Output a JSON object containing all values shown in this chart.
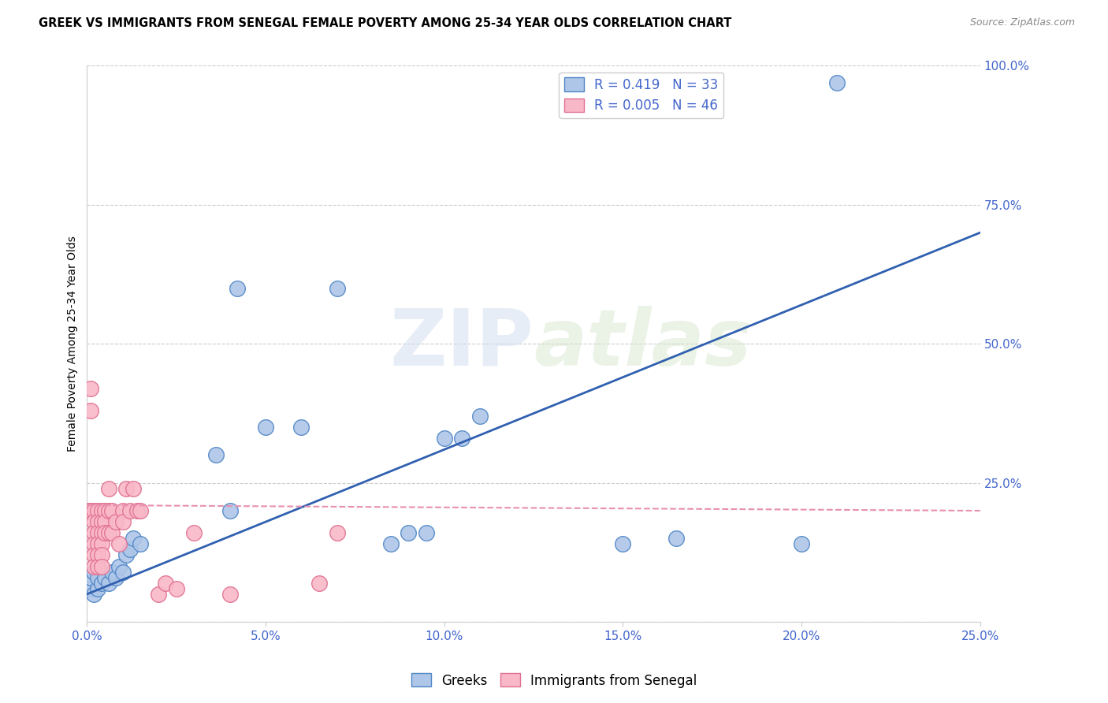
{
  "title": "GREEK VS IMMIGRANTS FROM SENEGAL FEMALE POVERTY AMONG 25-34 YEAR OLDS CORRELATION CHART",
  "source": "Source: ZipAtlas.com",
  "ylabel": "Female Poverty Among 25-34 Year Olds",
  "xlim": [
    0.0,
    0.25
  ],
  "ylim": [
    0.0,
    1.0
  ],
  "xticks": [
    0.0,
    0.05,
    0.1,
    0.15,
    0.2,
    0.25
  ],
  "yticks": [
    0.0,
    0.25,
    0.5,
    0.75,
    1.0
  ],
  "xtick_labels": [
    "0.0%",
    "5.0%",
    "10.0%",
    "15.0%",
    "20.0%",
    "25.0%"
  ],
  "ytick_labels": [
    "",
    "25.0%",
    "50.0%",
    "75.0%",
    "100.0%"
  ],
  "greek_R": 0.419,
  "greek_N": 33,
  "senegal_R": 0.005,
  "senegal_N": 46,
  "blue_color": "#aec6e8",
  "blue_edge_color": "#4f86c6",
  "pink_color": "#f9b8c8",
  "pink_edge_color": "#e07090",
  "blue_line_color": "#3060b0",
  "pink_line_color": "#e890b0",
  "legend_labels": [
    "Greeks",
    "Immigrants from Senegal"
  ],
  "watermark": "ZIPatlas",
  "greek_x": [
    0.001,
    0.001,
    0.002,
    0.002,
    0.003,
    0.003,
    0.004,
    0.005,
    0.006,
    0.007,
    0.008,
    0.009,
    0.01,
    0.011,
    0.012,
    0.013,
    0.015,
    0.036,
    0.04,
    0.042,
    0.05,
    0.06,
    0.07,
    0.085,
    0.09,
    0.095,
    0.1,
    0.105,
    0.11,
    0.15,
    0.165,
    0.2,
    0.21
  ],
  "greek_y": [
    0.06,
    0.08,
    0.05,
    0.09,
    0.06,
    0.08,
    0.07,
    0.08,
    0.07,
    0.09,
    0.08,
    0.1,
    0.09,
    0.12,
    0.13,
    0.15,
    0.14,
    0.3,
    0.2,
    0.6,
    0.35,
    0.35,
    0.6,
    0.14,
    0.16,
    0.16,
    0.33,
    0.33,
    0.37,
    0.14,
    0.15,
    0.14,
    0.97
  ],
  "senegal_x": [
    0.0005,
    0.001,
    0.001,
    0.001,
    0.002,
    0.002,
    0.002,
    0.002,
    0.002,
    0.002,
    0.003,
    0.003,
    0.003,
    0.003,
    0.003,
    0.003,
    0.004,
    0.004,
    0.004,
    0.004,
    0.004,
    0.004,
    0.005,
    0.005,
    0.005,
    0.006,
    0.006,
    0.006,
    0.007,
    0.007,
    0.008,
    0.009,
    0.01,
    0.01,
    0.011,
    0.012,
    0.013,
    0.014,
    0.015,
    0.02,
    0.022,
    0.025,
    0.03,
    0.04,
    0.065,
    0.07
  ],
  "senegal_y": [
    0.2,
    0.42,
    0.38,
    0.2,
    0.2,
    0.18,
    0.16,
    0.14,
    0.12,
    0.1,
    0.2,
    0.18,
    0.16,
    0.14,
    0.12,
    0.1,
    0.2,
    0.18,
    0.16,
    0.14,
    0.12,
    0.1,
    0.2,
    0.18,
    0.16,
    0.24,
    0.2,
    0.16,
    0.2,
    0.16,
    0.18,
    0.14,
    0.2,
    0.18,
    0.24,
    0.2,
    0.24,
    0.2,
    0.2,
    0.05,
    0.07,
    0.06,
    0.16,
    0.05,
    0.07,
    0.16
  ]
}
